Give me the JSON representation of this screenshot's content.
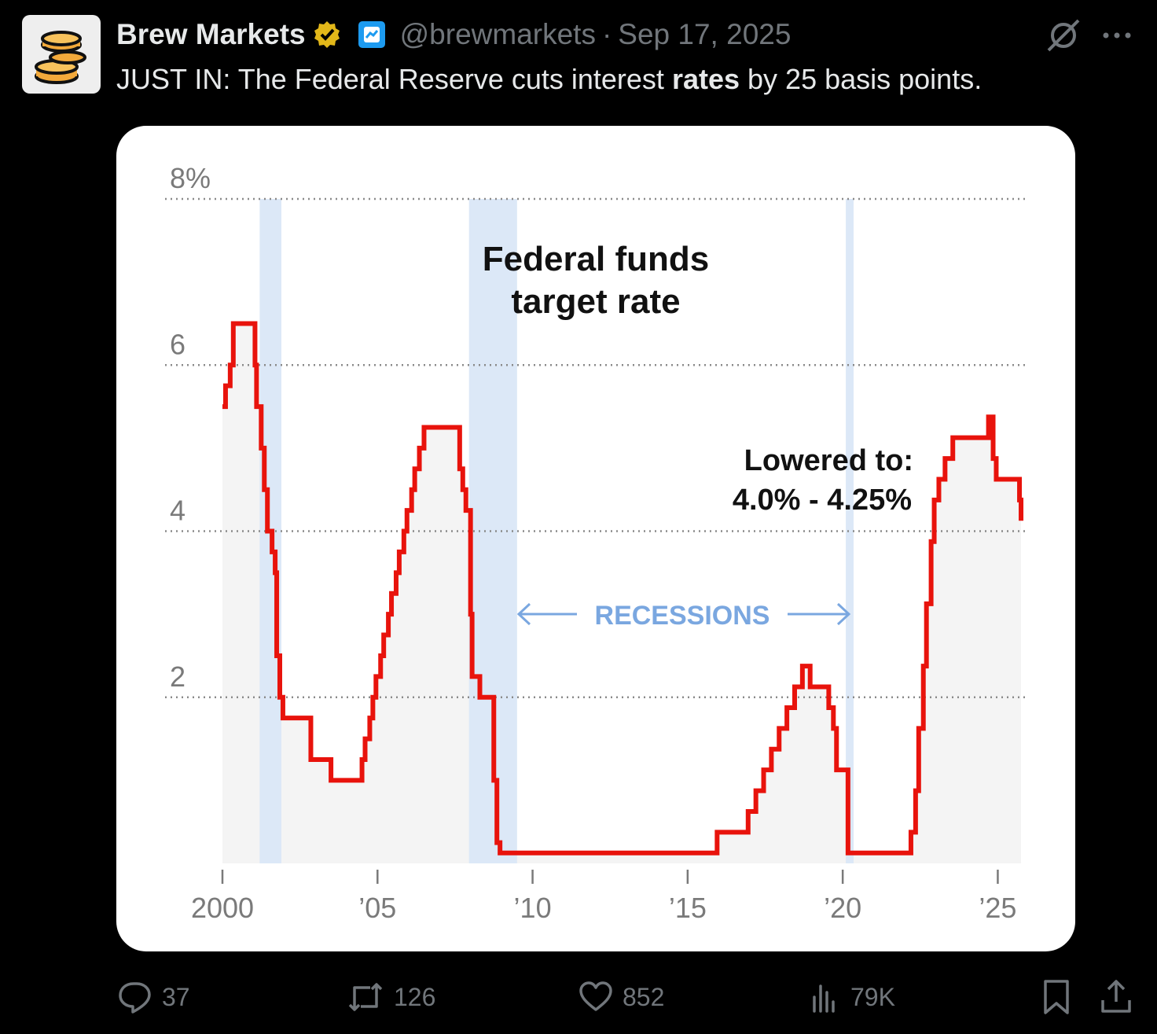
{
  "post": {
    "author_name": "Brew Markets",
    "handle": "@brewmarkets",
    "separator": "·",
    "date": "Sep 17, 2025",
    "text_before": "JUST IN: The Federal Reserve cuts interest ",
    "text_bold": "rates",
    "text_after": " by 25 basis points."
  },
  "actions": {
    "replies": "37",
    "reposts": "126",
    "likes": "852",
    "views": "79K"
  },
  "icons": {
    "avatar": "coin-stack-icon",
    "verified": "verified-badge-icon",
    "affiliate": "affiliate-badge-icon",
    "grok": "grok-icon",
    "more": "more-icon",
    "reply": "reply-icon",
    "retweet": "retweet-icon",
    "like": "heart-icon",
    "views": "views-icon",
    "bookmark": "bookmark-icon",
    "share": "share-icon"
  },
  "colors": {
    "background": "#000000",
    "text": "#e7e9ea",
    "muted": "#71767b",
    "verified_gold": "#e2b719",
    "affiliate_blue": "#1d9bf0",
    "line": "#e8130c",
    "recession": "#dce8f7",
    "recession_label": "#7aa7e0"
  },
  "chart_data": {
    "type": "line",
    "title": [
      "Federal funds",
      "target rate"
    ],
    "ylim": [
      0,
      8
    ],
    "yticks": [
      2,
      4,
      6,
      8
    ],
    "ytick_labels": [
      "2",
      "4",
      "6",
      "8%"
    ],
    "xlim": [
      2000,
      2025.8
    ],
    "xticks": [
      2000,
      2005,
      2010,
      2015,
      2020,
      2025
    ],
    "xtick_labels": [
      "2000",
      "’05",
      "’10",
      "’15",
      "’20",
      "’25"
    ],
    "grid": true,
    "recession_label": "RECESSIONS",
    "recessions": [
      [
        2001.2,
        2001.9
      ],
      [
        2007.95,
        2009.5
      ],
      [
        2020.1,
        2020.35
      ]
    ],
    "annotation": [
      "Lowered to:",
      "4.0% - 4.25%"
    ],
    "series": [
      {
        "x": [
          2000.0,
          2000.1,
          2000.25,
          2000.35,
          2000.55,
          2000.9,
          2001.05,
          2001.1,
          2001.25,
          2001.35,
          2001.45,
          2001.6,
          2001.7,
          2001.75,
          2001.85,
          2001.95,
          2002.85,
          2003.5,
          2004.5,
          2004.6,
          2004.75,
          2004.85,
          2004.95,
          2005.1,
          2005.2,
          2005.35,
          2005.45,
          2005.6,
          2005.7,
          2005.85,
          2005.95,
          2006.1,
          2006.2,
          2006.35,
          2006.5,
          2007.65,
          2007.75,
          2007.85,
          2008.0,
          2008.05,
          2008.3,
          2008.75,
          2008.85,
          2008.95,
          2015.95,
          2016.95,
          2017.2,
          2017.45,
          2017.7,
          2017.95,
          2018.2,
          2018.45,
          2018.7,
          2018.95,
          2019.55,
          2019.7,
          2019.8,
          2020.17,
          2020.2,
          2022.2,
          2022.35,
          2022.45,
          2022.6,
          2022.7,
          2022.85,
          2022.95,
          2023.1,
          2023.3,
          2023.55,
          2024.7,
          2024.85,
          2024.95,
          2025.7,
          2025.75
        ],
        "y": [
          5.5,
          5.75,
          6.0,
          6.5,
          6.5,
          6.5,
          6.0,
          5.5,
          5.0,
          4.5,
          4.0,
          3.75,
          3.5,
          2.5,
          2.0,
          1.75,
          1.25,
          1.0,
          1.25,
          1.5,
          1.75,
          2.0,
          2.25,
          2.5,
          2.75,
          3.0,
          3.25,
          3.5,
          3.75,
          4.0,
          4.25,
          4.5,
          4.75,
          5.0,
          5.25,
          4.75,
          4.5,
          4.25,
          3.0,
          2.25,
          2.0,
          1.0,
          0.25,
          0.125,
          0.375,
          0.625,
          0.875,
          1.125,
          1.375,
          1.625,
          1.875,
          2.125,
          2.375,
          2.125,
          1.875,
          1.625,
          1.125,
          0.125,
          0.125,
          0.375,
          0.875,
          1.625,
          2.375,
          3.125,
          3.875,
          4.375,
          4.625,
          4.875,
          5.125,
          5.375,
          4.875,
          4.625,
          4.375,
          4.125
        ]
      }
    ]
  }
}
